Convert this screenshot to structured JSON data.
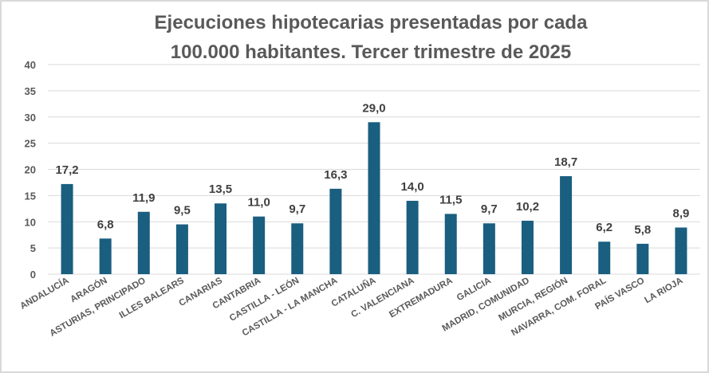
{
  "chart_data": {
    "type": "bar",
    "title_lines": [
      "Ejecuciones hipotecarias presentadas por cada",
      "100.000 habitantes. Tercer trimestre de 2025"
    ],
    "categories": [
      "ANDALUCÍA",
      "ARAGÓN",
      "ASTURIAS, PRINCIPADO",
      "ILLES BALEARS",
      "CANARIAS",
      "CANTABRIA",
      "CASTILLA - LEÓN",
      "CASTILLA - LA MANCHA",
      "CATALUÑA",
      "C. VALENCIANA",
      "EXTREMADURA",
      "GALICIA",
      "MADRID, COMUNIDAD",
      "MURCIA, REGIÓN",
      "NAVARRA, COM. FORAL",
      "PAÍS VASCO",
      "LA RIOJA"
    ],
    "values": [
      17.2,
      6.8,
      11.9,
      9.5,
      13.5,
      11.0,
      9.7,
      16.3,
      29.0,
      14.0,
      11.5,
      9.7,
      10.2,
      18.7,
      6.2,
      5.8,
      8.9
    ],
    "data_labels": [
      "17,2",
      "6,8",
      "11,9",
      "9,5",
      "13,5",
      "11,0",
      "9,7",
      "16,3",
      "29,0",
      "14,0",
      "11,5",
      "9,7",
      "10,2",
      "18,7",
      "6,2",
      "5,8",
      "8,9"
    ],
    "ylim": [
      0,
      40
    ],
    "yticks": [
      "0",
      "5",
      "10",
      "15",
      "20",
      "25",
      "30",
      "35",
      "40"
    ],
    "grid": true,
    "legend": "none",
    "bar_color": "#1a5e80",
    "xlabel": "",
    "ylabel": ""
  }
}
